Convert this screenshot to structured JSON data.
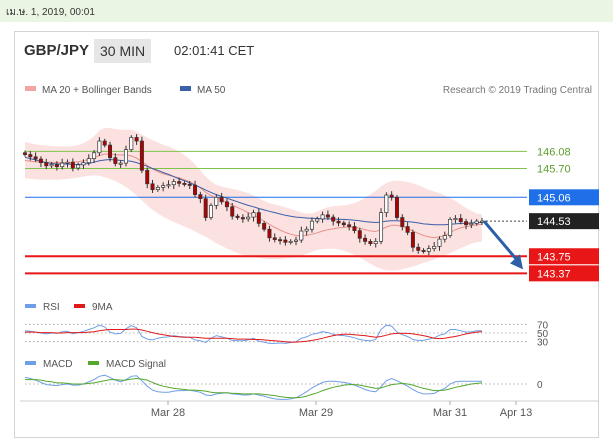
{
  "top_bar": {
    "text": "เม.ษ. 1, 2019, 00:01"
  },
  "header": {
    "pair": "GBP/JPY",
    "timeframe": "30 MIN",
    "time": "02:01:41 CET"
  },
  "legend": {
    "ma_bollinger": "MA 20 + Bollinger Bands",
    "ma50": "MA 50",
    "credit": "Research © 2019 Trading Central",
    "rsi": "RSI",
    "rsi_ma": "9MA",
    "macd": "MACD",
    "macd_signal": "MACD Signal"
  },
  "colors": {
    "candle_up": "#ffffff",
    "candle_down": "#b00000",
    "bollinger_fill": "#fcdcdc",
    "ma20": "#e8908c",
    "ma50": "#3b5fa8",
    "resistance": "#7fc34a",
    "pivot": "#1f6fe8",
    "support": "#e81616",
    "current": "#222222",
    "rsi": "#6f9ee8",
    "rsi_ma": "#e01a1a",
    "macd": "#6f9ee8",
    "macd_signal": "#54a82c",
    "arrow": "#2c5fa8"
  },
  "chart_data": {
    "type": "candlestick",
    "instrument": "GBP/JPY",
    "interval": "30 MIN",
    "x_ticks": [
      "Mar 28",
      "Mar 29",
      "Mar 31",
      "Apr 13"
    ],
    "levels": [
      {
        "value": 146.08,
        "label": "146.08",
        "kind": "resistance"
      },
      {
        "value": 145.7,
        "label": "145.70",
        "kind": "resistance"
      },
      {
        "value": 145.06,
        "label": "145.06",
        "kind": "pivot"
      },
      {
        "value": 144.53,
        "label": "144.53",
        "kind": "current"
      },
      {
        "value": 143.75,
        "label": "143.75",
        "kind": "support"
      },
      {
        "value": 143.37,
        "label": "143.37",
        "kind": "support"
      }
    ],
    "y_range": [
      143.0,
      147.0
    ],
    "forecast": {
      "from": 144.53,
      "to": 143.37,
      "direction": "down"
    },
    "close_series": [
      146.01,
      145.96,
      145.91,
      145.83,
      145.76,
      145.79,
      145.74,
      145.82,
      145.84,
      145.71,
      145.78,
      145.83,
      145.92,
      146.05,
      146.31,
      146.22,
      145.94,
      145.81,
      145.82,
      146.12,
      146.39,
      146.31,
      145.66,
      145.36,
      145.23,
      145.28,
      145.32,
      145.34,
      145.41,
      145.37,
      145.35,
      145.33,
      145.12,
      145.03,
      144.61,
      144.88,
      145.06,
      144.96,
      144.85,
      144.64,
      144.61,
      144.58,
      144.62,
      144.72,
      144.48,
      144.35,
      144.16,
      144.12,
      144.11,
      144.06,
      144.08,
      144.11,
      144.31,
      144.35,
      144.53,
      144.58,
      144.67,
      144.62,
      144.53,
      144.49,
      144.45,
      144.41,
      144.32,
      144.15,
      144.08,
      144.03,
      144.08,
      144.72,
      145.11,
      145.06,
      144.61,
      144.41,
      144.28,
      143.95,
      143.88,
      143.86,
      143.92,
      143.97,
      144.13,
      144.21,
      144.57,
      144.59,
      144.52,
      144.45,
      144.48,
      144.53,
      144.53
    ],
    "ma50_series": [
      145.95,
      145.92,
      145.89,
      145.86,
      145.83,
      145.81,
      145.8,
      145.8,
      145.8,
      145.79,
      145.79,
      145.8,
      145.81,
      145.84,
      145.87,
      145.89,
      145.9,
      145.89,
      145.88,
      145.87,
      145.86,
      145.83,
      145.79,
      145.75,
      145.7,
      145.66,
      145.61,
      145.57,
      145.52,
      145.47,
      145.43,
      145.38,
      145.33,
      145.28,
      145.22,
      145.17,
      145.12,
      145.08,
      145.04,
      145.0,
      144.96,
      144.92,
      144.88,
      144.85,
      144.81,
      144.78,
      144.75,
      144.72,
      144.69,
      144.66,
      144.64,
      144.62,
      144.61,
      144.6,
      144.59,
      144.59,
      144.58,
      144.58,
      144.58,
      144.57,
      144.57,
      144.56,
      144.55,
      144.54,
      144.52,
      144.51,
      144.5,
      144.51,
      144.53,
      144.54,
      144.54,
      144.53,
      144.52,
      144.51,
      144.49,
      144.47,
      144.46,
      144.45,
      144.45,
      144.45,
      144.46,
      144.47,
      144.48,
      144.48,
      144.49,
      144.5,
      144.5
    ],
    "ma20_series": [
      145.88,
      145.86,
      145.85,
      145.84,
      145.84,
      145.84,
      145.83,
      145.83,
      145.83,
      145.84,
      145.85,
      145.87,
      145.9,
      145.94,
      145.99,
      146.02,
      146.02,
      146.01,
      146.0,
      146.0,
      145.98,
      145.93,
      145.85,
      145.77,
      145.69,
      145.63,
      145.58,
      145.55,
      145.52,
      145.49,
      145.45,
      145.41,
      145.34,
      145.27,
      145.17,
      145.1,
      145.05,
      145.0,
      144.95,
      144.89,
      144.83,
      144.78,
      144.72,
      144.67,
      144.6,
      144.53,
      144.46,
      144.39,
      144.33,
      144.28,
      144.24,
      144.21,
      144.2,
      144.21,
      144.24,
      144.27,
      144.31,
      144.34,
      144.36,
      144.38,
      144.39,
      144.4,
      144.39,
      144.37,
      144.34,
      144.31,
      144.3,
      144.34,
      144.4,
      144.44,
      144.44,
      144.41,
      144.37,
      144.31,
      144.26,
      144.21,
      144.18,
      144.16,
      144.18,
      144.21,
      144.28,
      144.34,
      144.38,
      144.41,
      144.43,
      144.45,
      144.46
    ],
    "bollinger_upper": [
      146.29,
      146.26,
      146.24,
      146.22,
      146.21,
      146.2,
      146.19,
      146.19,
      146.19,
      146.2,
      146.22,
      146.26,
      146.33,
      146.42,
      146.55,
      146.6,
      146.6,
      146.58,
      146.56,
      146.56,
      146.56,
      146.52,
      146.45,
      146.39,
      146.33,
      146.28,
      146.23,
      146.19,
      146.14,
      146.08,
      146.0,
      145.91,
      145.79,
      145.66,
      145.52,
      145.41,
      145.34,
      145.3,
      145.27,
      145.25,
      145.22,
      145.19,
      145.15,
      145.1,
      145.04,
      144.98,
      144.93,
      144.9,
      144.87,
      144.84,
      144.8,
      144.76,
      144.72,
      144.7,
      144.7,
      144.74,
      144.8,
      144.84,
      144.86,
      144.87,
      144.88,
      144.9,
      144.93,
      144.98,
      145.05,
      145.13,
      145.2,
      145.3,
      145.38,
      145.42,
      145.43,
      145.42,
      145.4,
      145.37,
      145.33,
      145.28,
      145.23,
      145.19,
      145.15,
      145.1,
      145.05,
      144.98,
      144.9,
      144.82,
      144.76,
      144.7,
      144.68
    ],
    "bollinger_lower": [
      145.48,
      145.47,
      145.46,
      145.45,
      145.45,
      145.45,
      145.45,
      145.46,
      145.47,
      145.48,
      145.5,
      145.52,
      145.54,
      145.55,
      145.54,
      145.51,
      145.47,
      145.42,
      145.36,
      145.29,
      145.2,
      145.1,
      144.99,
      144.88,
      144.78,
      144.7,
      144.63,
      144.57,
      144.51,
      144.46,
      144.41,
      144.36,
      144.3,
      144.24,
      144.18,
      144.11,
      144.04,
      143.98,
      143.92,
      143.87,
      143.82,
      143.78,
      143.75,
      143.73,
      143.71,
      143.7,
      143.69,
      143.69,
      143.69,
      143.7,
      143.71,
      143.73,
      143.76,
      143.8,
      143.85,
      143.89,
      143.91,
      143.92,
      143.92,
      143.9,
      143.87,
      143.83,
      143.78,
      143.72,
      143.65,
      143.58,
      143.52,
      143.47,
      143.44,
      143.43,
      143.44,
      143.46,
      143.49,
      143.52,
      143.56,
      143.6,
      143.64,
      143.68,
      143.72,
      143.77,
      143.82,
      143.87,
      143.93,
      143.98,
      144.03,
      144.06,
      144.08
    ],
    "rsi": {
      "levels": [
        {
          "value": 70,
          "label": "70"
        },
        {
          "value": 50,
          "label": "50"
        },
        {
          "value": 30,
          "label": "30"
        }
      ],
      "rsi_series": [
        55,
        54,
        52,
        50,
        48,
        50,
        49,
        53,
        54,
        48,
        51,
        54,
        58,
        62,
        68,
        64,
        52,
        48,
        49,
        60,
        67,
        62,
        42,
        36,
        34,
        38,
        40,
        41,
        44,
        42,
        41,
        40,
        34,
        32,
        28,
        38,
        44,
        41,
        38,
        33,
        32,
        32,
        34,
        38,
        31,
        29,
        26,
        26,
        27,
        26,
        28,
        30,
        38,
        41,
        47,
        49,
        53,
        51,
        47,
        45,
        44,
        42,
        39,
        35,
        33,
        32,
        35,
        58,
        68,
        66,
        52,
        46,
        42,
        35,
        33,
        33,
        36,
        39,
        45,
        48,
        58,
        58,
        55,
        52,
        53,
        55,
        55
      ],
      "ma_series": [
        52,
        52,
        52,
        51,
        51,
        51,
        50,
        50,
        51,
        51,
        51,
        51,
        52,
        53,
        55,
        57,
        58,
        58,
        58,
        58,
        59,
        59,
        57,
        54,
        51,
        48,
        46,
        44,
        42,
        41,
        40,
        40,
        40,
        39,
        38,
        38,
        38,
        38,
        38,
        37,
        36,
        36,
        36,
        35,
        35,
        34,
        33,
        32,
        31,
        30,
        29,
        29,
        30,
        31,
        33,
        35,
        38,
        41,
        44,
        46,
        47,
        47,
        46,
        45,
        44,
        42,
        40,
        42,
        45,
        48,
        49,
        49,
        49,
        48,
        46,
        44,
        41,
        38,
        37,
        38,
        40,
        42,
        45,
        48,
        50,
        52,
        53
      ]
    },
    "macd": {
      "zero_label": "0",
      "macd_series": [
        0.12,
        0.1,
        0.07,
        0.03,
        -0.01,
        -0.02,
        -0.03,
        -0.01,
        0.0,
        -0.02,
        -0.02,
        0.0,
        0.04,
        0.08,
        0.14,
        0.16,
        0.12,
        0.07,
        0.04,
        0.08,
        0.14,
        0.15,
        0.06,
        -0.04,
        -0.11,
        -0.14,
        -0.15,
        -0.15,
        -0.13,
        -0.12,
        -0.12,
        -0.11,
        -0.13,
        -0.15,
        -0.2,
        -0.21,
        -0.18,
        -0.17,
        -0.16,
        -0.18,
        -0.19,
        -0.2,
        -0.2,
        -0.18,
        -0.2,
        -0.22,
        -0.25,
        -0.27,
        -0.28,
        -0.28,
        -0.27,
        -0.25,
        -0.2,
        -0.14,
        -0.07,
        -0.02,
        0.03,
        0.05,
        0.05,
        0.04,
        0.03,
        0.01,
        -0.02,
        -0.06,
        -0.1,
        -0.13,
        -0.14,
        -0.05,
        0.06,
        0.1,
        0.06,
        0.01,
        -0.04,
        -0.1,
        -0.15,
        -0.18,
        -0.18,
        -0.17,
        -0.12,
        -0.08,
        0.0,
        0.04,
        0.05,
        0.05,
        0.05,
        0.05,
        0.05
      ],
      "signal_series": [
        0.08,
        0.08,
        0.08,
        0.07,
        0.05,
        0.04,
        0.02,
        0.02,
        0.01,
        0.0,
        0.0,
        0.0,
        0.01,
        0.02,
        0.04,
        0.06,
        0.08,
        0.08,
        0.07,
        0.07,
        0.09,
        0.1,
        0.09,
        0.07,
        0.03,
        -0.01,
        -0.04,
        -0.06,
        -0.08,
        -0.09,
        -0.1,
        -0.11,
        -0.11,
        -0.12,
        -0.13,
        -0.15,
        -0.16,
        -0.16,
        -0.16,
        -0.17,
        -0.17,
        -0.18,
        -0.18,
        -0.18,
        -0.18,
        -0.19,
        -0.2,
        -0.21,
        -0.23,
        -0.24,
        -0.25,
        -0.25,
        -0.24,
        -0.22,
        -0.19,
        -0.16,
        -0.12,
        -0.09,
        -0.06,
        -0.04,
        -0.02,
        -0.01,
        -0.01,
        -0.02,
        -0.04,
        -0.06,
        -0.08,
        -0.07,
        -0.04,
        -0.01,
        0.0,
        0.01,
        0.0,
        -0.02,
        -0.05,
        -0.08,
        -0.1,
        -0.12,
        -0.12,
        -0.11,
        -0.09,
        -0.06,
        -0.04,
        -0.02,
        0.0,
        0.01,
        0.02
      ]
    }
  }
}
